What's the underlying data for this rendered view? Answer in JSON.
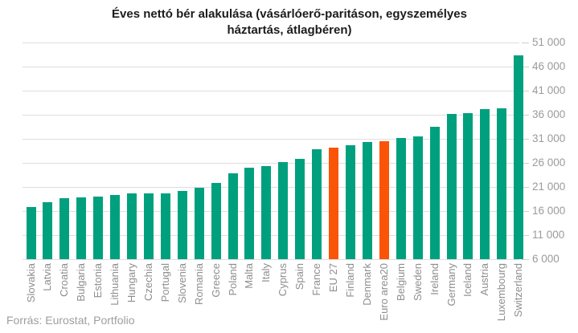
{
  "title": {
    "line1": "Éves nettó bér alakulása (vásárlóerő-paritáson, egyszemélyes",
    "line2": "háztartás, átlagbéren)"
  },
  "source": "Forrás: Eurostat, Portfolio",
  "colors": {
    "bar": "#00a07e",
    "highlight": "#fa5406",
    "gridline": "#dedede",
    "axis_text": "#9a9a9a",
    "title_text": "#1c1c1c"
  },
  "chart_data": {
    "type": "bar",
    "title": "Éves nettó bér alakulása (vásárlóerő-paritáson, egyszemélyes háztartás, átlagbéren)",
    "xlabel": "",
    "ylabel": "",
    "grid": true,
    "y_axis_side": "right",
    "ylim": [
      6000,
      51000
    ],
    "categories": [
      "Slovakia",
      "Latvia",
      "Croatia",
      "Bulgaria",
      "Estonia",
      "Lithuania",
      "Hungary",
      "Czechia",
      "Portugal",
      "Slovenia",
      "Romania",
      "Greece",
      "Poland",
      "Malta",
      "Italy",
      "Cyprus",
      "Spain",
      "France",
      "EU 27",
      "Finland",
      "Denmark",
      "Euro area20",
      "Belgium",
      "Sweden",
      "Ireland",
      "Germany",
      "Iceland",
      "Austria",
      "Luxembourg",
      "Switzerland"
    ],
    "values": [
      16900,
      17800,
      18700,
      18900,
      19000,
      19400,
      19600,
      19700,
      19700,
      20200,
      20900,
      21900,
      23900,
      25000,
      25300,
      26100,
      26800,
      28800,
      29100,
      29600,
      30300,
      30500,
      31200,
      31500,
      33500,
      36200,
      36400,
      37200,
      37400,
      48300
    ],
    "highlighted_categories": [
      "EU 27",
      "Euro area20"
    ],
    "y_ticks": {
      "values": [
        51000,
        46000,
        41000,
        36000,
        31000,
        26000,
        21000,
        16000,
        11000,
        6000
      ],
      "labels": [
        "51 000",
        "46 000",
        "41 000",
        "36 000",
        "31 000",
        "26 000",
        "21 000",
        "16 000",
        "11 000",
        "6 000"
      ]
    }
  }
}
